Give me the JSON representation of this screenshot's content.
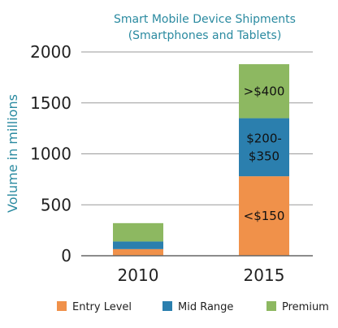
{
  "chart_data": {
    "type": "bar",
    "stacked": true,
    "title_lines": [
      "Smart Mobile Device Shipments",
      "(Smartphones and Tablets)"
    ],
    "xlabel": "",
    "ylabel": "Volume in millions",
    "ylim": [
      0,
      2000
    ],
    "yticks": [
      0,
      500,
      1000,
      1500,
      2000
    ],
    "grid": true,
    "legend_position": "bottom",
    "categories": [
      "2010",
      "2015"
    ],
    "series": [
      {
        "name": "Entry Level",
        "color": "#f0914a",
        "values": [
          65,
          780
        ]
      },
      {
        "name": "Mid Range",
        "color": "#2b7fae",
        "values": [
          75,
          570
        ]
      },
      {
        "name": "Premium",
        "color": "#8db861",
        "values": [
          180,
          530
        ]
      }
    ],
    "segment_labels": [
      {
        "category": "2015",
        "series": "Entry Level",
        "lines": [
          "<$150"
        ]
      },
      {
        "category": "2015",
        "series": "Mid Range",
        "lines": [
          "$200-",
          "$350"
        ]
      },
      {
        "category": "2015",
        "series": "Premium",
        "lines": [
          ">$400"
        ]
      }
    ]
  }
}
